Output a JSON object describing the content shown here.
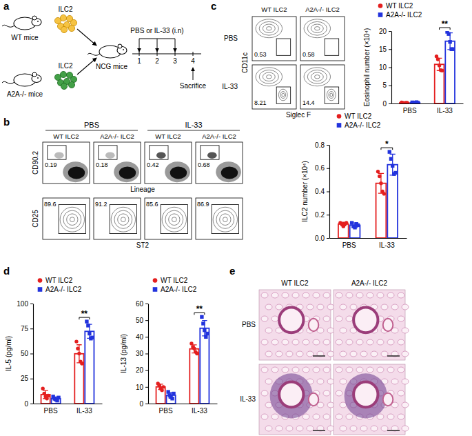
{
  "panel_labels": [
    "a",
    "b",
    "c",
    "d",
    "e"
  ],
  "schematic": {
    "donors": [
      {
        "label": "WT mice",
        "cells": "ILC2"
      },
      {
        "label": "A2A-/- mice",
        "cells": "ILC2"
      }
    ],
    "recipient": "NCG mice",
    "treatment": "PBS or IL-33 (i.n)",
    "days": [
      1,
      2,
      3,
      4
    ],
    "endpoint": "Sacrifice"
  },
  "flow_b": {
    "column_headers": [
      "PBS",
      "IL-33"
    ],
    "sub_headers": [
      "WT ILC2",
      "A2A-/- ILC2",
      "WT ILC2",
      "A2A-/- ILC2"
    ],
    "rows": [
      {
        "x_label": "Lineage",
        "y_label": "CD90.2",
        "gates": [
          0.19,
          0.18,
          0.42,
          0.68
        ]
      },
      {
        "x_label": "ST2",
        "y_label": "CD25",
        "gates": [
          89.6,
          91.2,
          85.6,
          86.9
        ]
      }
    ]
  },
  "flow_c": {
    "column_headers": [
      "WT ILC2",
      "A2A-/- ILC2"
    ],
    "row_headers": [
      "PBS",
      "IL-33"
    ],
    "x_label": "Siglec F",
    "y_label": "CD11c",
    "gates": [
      [
        0.53,
        0.58
      ],
      [
        8.21,
        14.4
      ]
    ]
  },
  "chart_data": [
    {
      "type": "bar",
      "y_label": "ILC2 number (×10⁴)",
      "categories": [
        "PBS",
        "IL-33"
      ],
      "legend": "top",
      "ylim": [
        0,
        0.8
      ],
      "yticks": [
        {
          "value": 0,
          "label": "0.0"
        },
        0.2,
        0.4,
        0.6,
        0.8
      ],
      "series": [
        {
          "name": "WT ILC2",
          "color": "#e41f1f",
          "marker": "circle",
          "values": [
            0.12,
            0.47
          ],
          "errors": [
            0.015,
            0.085
          ],
          "points": [
            [
              0.13,
              0.12,
              0.1,
              0.12,
              0.13
            ],
            [
              0.57,
              0.53,
              0.47,
              0.4,
              0.38
            ]
          ]
        },
        {
          "name": "A2A-/- ILC2",
          "color": "#2233dd",
          "marker": "square",
          "values": [
            0.11,
            0.63
          ],
          "errors": [
            0.02,
            0.09
          ],
          "points": [
            [
              0.13,
              0.1,
              0.09,
              0.12,
              0.11
            ],
            [
              0.74,
              0.68,
              0.62,
              0.55,
              0.56
            ]
          ]
        }
      ],
      "annotations": [
        {
          "text": "*",
          "category": "IL-33"
        }
      ]
    },
    {
      "type": "bar",
      "y_label": "Eosinophil number (×10⁴)",
      "categories": [
        "PBS",
        "IL-33"
      ],
      "legend": "top",
      "ylim": [
        0,
        20
      ],
      "yticks": [
        0,
        5,
        10,
        15,
        20
      ],
      "series": [
        {
          "name": "WT ILC2",
          "color": "#e41f1f",
          "marker": "circle",
          "values": [
            0.2,
            10.8
          ],
          "errors": [
            0.1,
            1.7
          ],
          "points": [
            [
              0.3,
              0.2,
              0.1,
              0.2,
              0.2
            ],
            [
              13.0,
              12.2,
              10.5,
              9.2,
              9.1
            ]
          ]
        },
        {
          "name": "A2A-/- ILC2",
          "color": "#2233dd",
          "marker": "square",
          "values": [
            0.25,
            17.2
          ],
          "errors": [
            0.1,
            2.3
          ],
          "points": [
            [
              0.3,
              0.2,
              0.2,
              0.35,
              0.2
            ],
            [
              19.8,
              19.2,
              17.0,
              15.0,
              15.0
            ]
          ]
        }
      ],
      "annotations": [
        {
          "text": "**",
          "category": "IL-33"
        }
      ]
    },
    {
      "type": "bar",
      "y_label": "IL-5 (pg/ml)",
      "categories": [
        "PBS",
        "IL-33"
      ],
      "legend": "top",
      "ylim": [
        0,
        100
      ],
      "yticks": [
        0,
        25,
        50,
        75,
        100
      ],
      "series": [
        {
          "name": "WT ILC2",
          "color": "#e41f1f",
          "marker": "circle",
          "values": [
            9,
            49.8
          ],
          "errors": [
            4,
            9
          ],
          "points": [
            [
              15,
              10,
              7,
              5,
              8
            ],
            [
              62,
              55,
              50,
              42,
              40
            ]
          ]
        },
        {
          "name": "A2A-/- ILC2",
          "color": "#2233dd",
          "marker": "square",
          "values": [
            5,
            72.2
          ],
          "errors": [
            1.6,
            7
          ],
          "points": [
            [
              7,
              5,
              4,
              3,
              6
            ],
            [
              82,
              78,
              70,
              65,
              66
            ]
          ]
        }
      ],
      "annotations": [
        {
          "text": "**",
          "category": "IL-33"
        }
      ]
    },
    {
      "type": "bar",
      "y_label": "IL-13 (pg/ml)",
      "categories": [
        "PBS",
        "IL-33"
      ],
      "legend": "top",
      "ylim": [
        0,
        60
      ],
      "yticks": [
        0,
        10,
        20,
        30,
        40,
        50,
        60
      ],
      "series": [
        {
          "name": "WT ILC2",
          "color": "#e41f1f",
          "marker": "circle",
          "values": [
            10,
            32.8
          ],
          "errors": [
            1.6,
            2.4
          ],
          "points": [
            [
              12,
              11,
              9,
              8,
              10
            ],
            [
              36,
              34,
              33,
              31,
              30
            ]
          ]
        },
        {
          "name": "A2A-/- ILC2",
          "color": "#2233dd",
          "marker": "square",
          "values": [
            5,
            45.2
          ],
          "errors": [
            1.6,
            4.6
          ],
          "points": [
            [
              7,
              5,
              4,
              3,
              6
            ],
            [
              52,
              48,
              44,
              40,
              42
            ]
          ]
        }
      ],
      "annotations": [
        {
          "text": "**",
          "category": "IL-33"
        }
      ]
    }
  ],
  "histology": {
    "column_headers": [
      "WT ILC2",
      "A2A-/- ILC2"
    ],
    "row_headers": [
      "PBS",
      "IL-33"
    ]
  }
}
